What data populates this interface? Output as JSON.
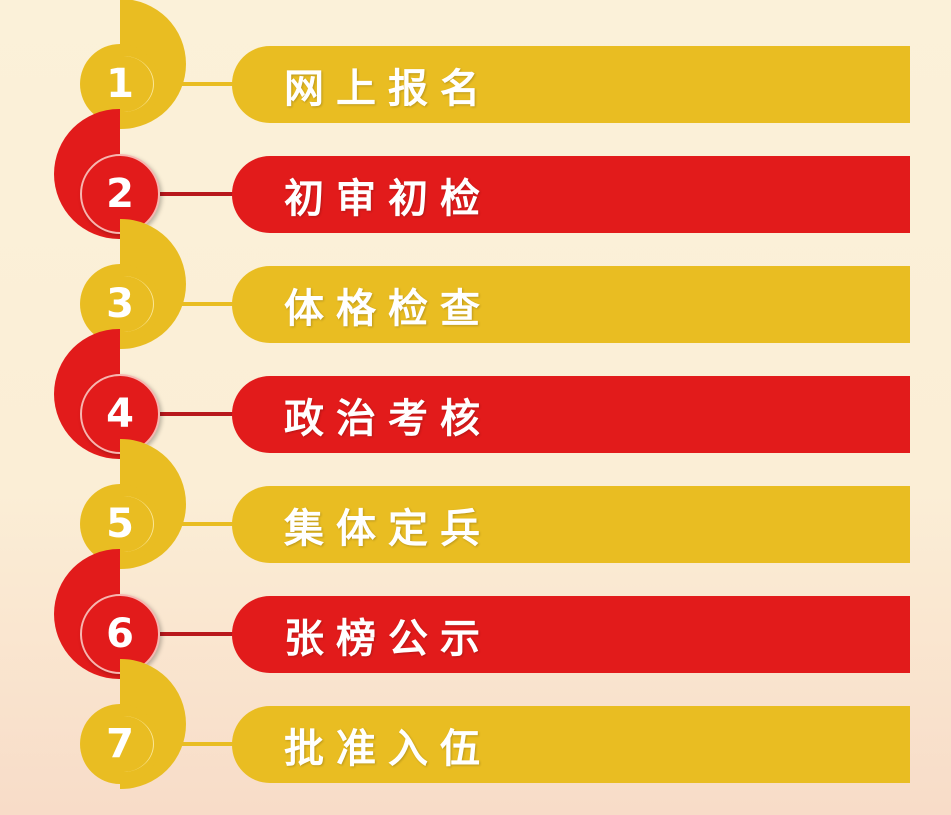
{
  "colors": {
    "yellow": "#e9bd22",
    "red": "#e21b1b",
    "red_line": "#b8181c"
  },
  "steps": [
    {
      "number": "1",
      "label": "网上报名",
      "color": "yellow"
    },
    {
      "number": "2",
      "label": "初审初检",
      "color": "red"
    },
    {
      "number": "3",
      "label": "体格检查",
      "color": "yellow"
    },
    {
      "number": "4",
      "label": "政治考核",
      "color": "red"
    },
    {
      "number": "5",
      "label": "集体定兵",
      "color": "yellow"
    },
    {
      "number": "6",
      "label": "张榜公示",
      "color": "red"
    },
    {
      "number": "7",
      "label": "批准入伍",
      "color": "yellow"
    }
  ]
}
